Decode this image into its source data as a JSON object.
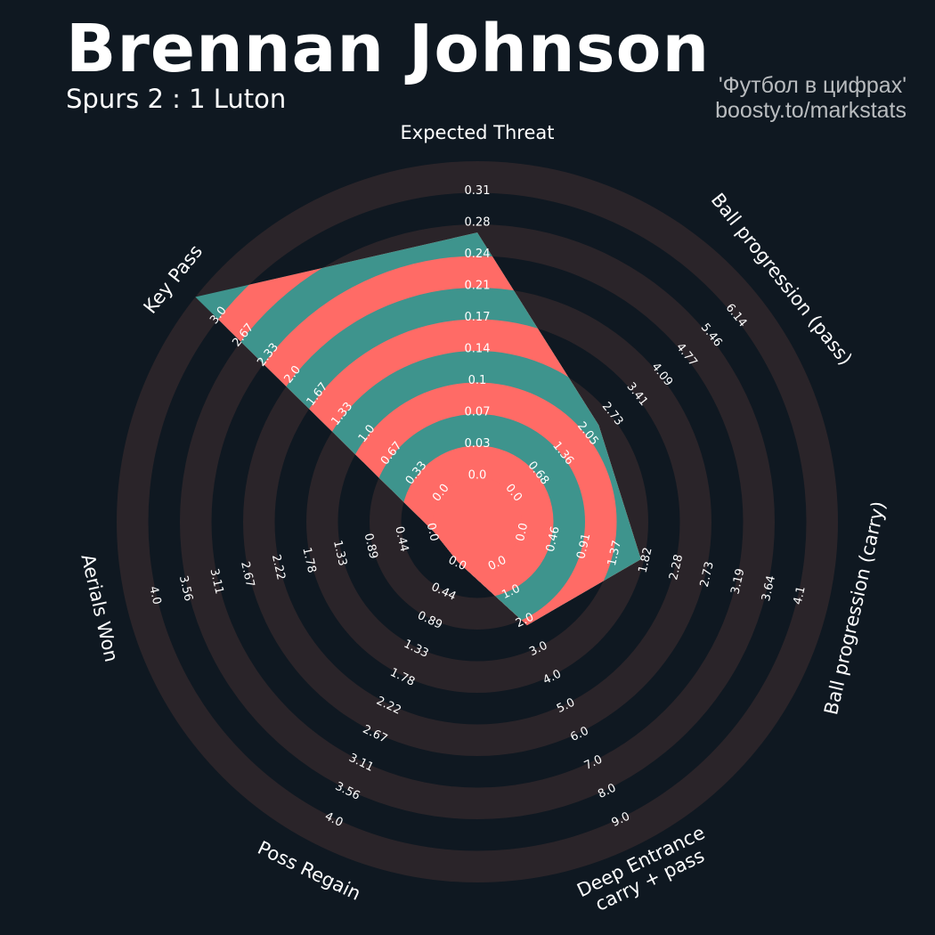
{
  "header": {
    "title": "Brennan Johnson",
    "subtitle": "Spurs 2 : 1 Luton",
    "credit_line1": "'Футбол в цифрах'",
    "credit_line2": "boosty.to/markstats"
  },
  "colors": {
    "background": "#0f1821",
    "ring": "#2a2429",
    "fill_a": "#3e948d",
    "fill_b": "#ff6b66",
    "text": "#ffffff"
  },
  "chart_data": {
    "type": "radar",
    "title": "Brennan Johnson",
    "params": [
      "Expected Threat",
      "Ball progression (pass)",
      "Ball progression (carry)",
      "Deep Entrance\ncarry + pass",
      "Poss Regain",
      "Aerials Won",
      "Key Pass"
    ],
    "ranges": [
      [
        0.0,
        0.31
      ],
      [
        0.0,
        6.14
      ],
      [
        0.0,
        4.1
      ],
      [
        0.0,
        9.0
      ],
      [
        0.0,
        4.0
      ],
      [
        0.0,
        4.0
      ],
      [
        0.0,
        3.0
      ]
    ],
    "tick_labels": [
      [
        "0.0",
        "0.03",
        "0.07",
        "0.1",
        "0.14",
        "0.17",
        "0.21",
        "0.24",
        "0.28",
        "0.31"
      ],
      [
        "0.0",
        "0.68",
        "1.36",
        "2.05",
        "2.73",
        "3.41",
        "4.09",
        "4.77",
        "5.46",
        "6.14"
      ],
      [
        "0.0",
        "0.46",
        "0.91",
        "1.37",
        "1.82",
        "2.28",
        "2.73",
        "3.19",
        "3.64",
        "4.1"
      ],
      [
        "0.0",
        "1.0",
        "2.0",
        "3.0",
        "4.0",
        "5.0",
        "6.0",
        "7.0",
        "8.0",
        "9.0"
      ],
      [
        "0.0",
        "0.44",
        "0.89",
        "1.33",
        "1.78",
        "2.22",
        "2.67",
        "3.11",
        "3.56",
        "4.0"
      ],
      [
        "0.0",
        "0.44",
        "0.89",
        "1.33",
        "1.78",
        "2.22",
        "2.67",
        "3.11",
        "3.56",
        "4.0"
      ],
      [
        "0.0",
        "0.33",
        "0.67",
        "1.0",
        "1.33",
        "1.67",
        "2.0",
        "2.33",
        "2.67",
        "3.0"
      ]
    ],
    "values": [
      0.24,
      2.15,
      1.6,
      2.0,
      0.0,
      0.0,
      3.0
    ],
    "grid": true
  }
}
